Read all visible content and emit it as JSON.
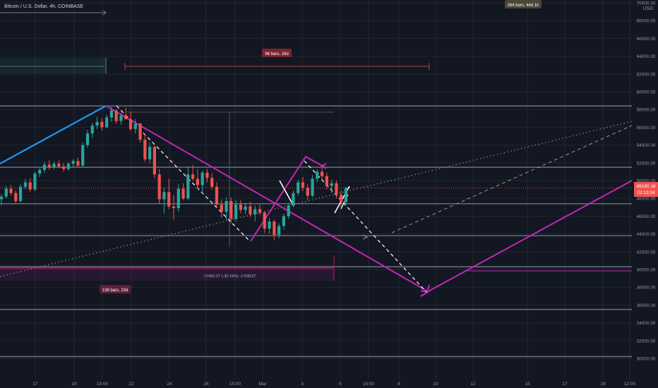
{
  "header": {
    "symbol_title": "Bitcoin / U.S. Dollar, 4h, COINBASE"
  },
  "axis": {
    "currency": "USD"
  },
  "price_label": {
    "value": "49180.16",
    "countdown": "02:13:34"
  },
  "annotations": {
    "range_top_right": "264 bars, 44d 1h",
    "range_middle": "96 bars, 16d",
    "range_bottom": "138 bars, 23d",
    "measure_text": "-17082.27 (-30.19%) -1708227"
  },
  "colors": {
    "background": "#131722",
    "grid": "#232733",
    "axis_text": "#9598a1",
    "bull": "#26a69a",
    "bear": "#ef5350",
    "support_line": "#787b86",
    "trend_blue": "#2196f3",
    "trend_magenta": "#c226b8",
    "price_tag": "#ef5350"
  },
  "chart_data": {
    "type": "candlestick",
    "title": "Bitcoin / U.S. Dollar, 4h, COINBASE",
    "ylabel": "USD",
    "ylim": [
      29000,
      70000
    ],
    "y_ticks": [
      30000,
      32000,
      34000,
      36000,
      38000,
      40000,
      42000,
      44000,
      46000,
      48000,
      50000,
      52000,
      54000,
      56000,
      58000,
      60000,
      62000,
      64000,
      66000,
      68000,
      70000
    ],
    "x_tick_labels": [
      "17",
      "19",
      "15:00",
      "22",
      "24",
      "26",
      "15:00",
      "Mar",
      "3",
      "5",
      "15:00",
      "8",
      "10",
      "12",
      "15",
      "17",
      "19",
      "12:00"
    ],
    "last_price": 49180.16,
    "horizontal_levels": [
      58400,
      51500,
      47400,
      43800,
      40300,
      35500,
      30200
    ],
    "series": [
      {
        "name": "BTCUSD 4h",
        "candles_approx_ohlc": [
          [
            47900,
            48500,
            47200,
            48200
          ],
          [
            48200,
            49400,
            48000,
            49100
          ],
          [
            49100,
            49500,
            48300,
            48600
          ],
          [
            48600,
            48900,
            47400,
            47700
          ],
          [
            47700,
            49600,
            47500,
            49300
          ],
          [
            49300,
            50200,
            49000,
            49800
          ],
          [
            49800,
            50300,
            48700,
            49000
          ],
          [
            49000,
            51000,
            48800,
            50800
          ],
          [
            50800,
            51500,
            50400,
            51200
          ],
          [
            51200,
            52100,
            50900,
            51800
          ],
          [
            51800,
            52300,
            51200,
            51500
          ],
          [
            51500,
            52200,
            51300,
            51900
          ],
          [
            51900,
            52300,
            51400,
            51600
          ],
          [
            51600,
            52000,
            51000,
            51300
          ],
          [
            51300,
            52100,
            51100,
            51900
          ],
          [
            51900,
            52400,
            51500,
            52200
          ],
          [
            52200,
            52600,
            51500,
            51700
          ],
          [
            51700,
            54300,
            51600,
            54000
          ],
          [
            54000,
            55700,
            53700,
            55300
          ],
          [
            55300,
            56500,
            54800,
            56200
          ],
          [
            56200,
            57200,
            55800,
            56600
          ],
          [
            56600,
            57000,
            55600,
            56000
          ],
          [
            56000,
            57400,
            55900,
            57100
          ],
          [
            57100,
            58300,
            56600,
            57900
          ],
          [
            57900,
            58000,
            56400,
            56700
          ],
          [
            56700,
            57600,
            56300,
            57300
          ],
          [
            57300,
            58200,
            56900,
            56900
          ],
          [
            56900,
            57800,
            55600,
            55800
          ],
          [
            55800,
            56900,
            55300,
            56400
          ],
          [
            56400,
            56500,
            54300,
            54600
          ],
          [
            54600,
            55200,
            52100,
            52400
          ],
          [
            52400,
            54300,
            51900,
            53800
          ],
          [
            53800,
            53900,
            50300,
            50700
          ],
          [
            50700,
            51300,
            47400,
            47900
          ],
          [
            47900,
            49200,
            46300,
            48700
          ],
          [
            48700,
            50200,
            46800,
            47100
          ],
          [
            47100,
            48400,
            45600,
            46900
          ],
          [
            46900,
            49600,
            46500,
            49100
          ],
          [
            49100,
            49700,
            47800,
            48000
          ],
          [
            48000,
            51600,
            47800,
            50700
          ],
          [
            50700,
            51800,
            50000,
            50200
          ],
          [
            50200,
            51300,
            49100,
            49500
          ],
          [
            49500,
            51100,
            48600,
            50900
          ],
          [
            50900,
            51300,
            49800,
            50300
          ],
          [
            50300,
            50800,
            49000,
            49300
          ],
          [
            49300,
            49800,
            46900,
            47300
          ],
          [
            47300,
            47900,
            45800,
            46500
          ],
          [
            46500,
            48100,
            45600,
            47700
          ],
          [
            47700,
            48100,
            45200,
            45700
          ],
          [
            45700,
            47800,
            45400,
            47300
          ],
          [
            47300,
            47800,
            46300,
            46700
          ],
          [
            46700,
            47500,
            46200,
            47100
          ],
          [
            47100,
            47600,
            45900,
            46200
          ],
          [
            46200,
            47200,
            45400,
            46800
          ],
          [
            46800,
            47300,
            46100,
            46400
          ],
          [
            46400,
            46600,
            44100,
            44600
          ],
          [
            44600,
            45800,
            44000,
            45400
          ],
          [
            45400,
            45600,
            43300,
            43900
          ],
          [
            43900,
            45200,
            43500,
            44900
          ],
          [
            44900,
            46300,
            44500,
            46000
          ],
          [
            46000,
            47500,
            45700,
            47200
          ],
          [
            47200,
            48900,
            47000,
            48600
          ],
          [
            48600,
            50100,
            48300,
            49800
          ],
          [
            49800,
            50400,
            48800,
            49200
          ],
          [
            49200,
            49600,
            47800,
            48300
          ],
          [
            48300,
            50600,
            48100,
            50200
          ],
          [
            50200,
            51300,
            49800,
            51000
          ],
          [
            51000,
            51800,
            50200,
            50500
          ],
          [
            50500,
            50900,
            49000,
            49400
          ],
          [
            49400,
            50100,
            48600,
            49700
          ],
          [
            49700,
            50000,
            48000,
            48400
          ],
          [
            48400,
            48900,
            47000,
            47600
          ],
          [
            47600,
            49300,
            47300,
            49180
          ]
        ]
      }
    ]
  }
}
